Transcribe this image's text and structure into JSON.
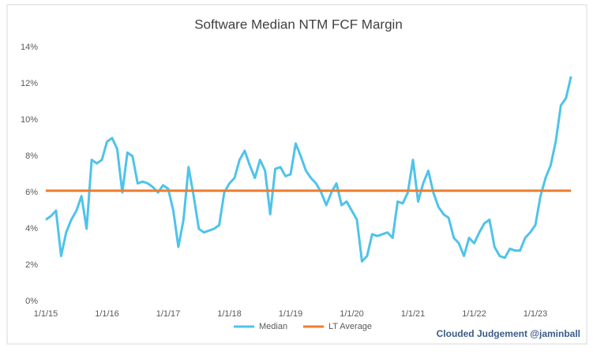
{
  "chart_data": {
    "type": "line",
    "title": "Software Median NTM FCF Margin",
    "categories": [
      "1/1/15",
      null,
      null,
      null,
      null,
      null,
      null,
      null,
      null,
      null,
      null,
      null,
      "1/1/16",
      null,
      null,
      null,
      null,
      null,
      null,
      null,
      null,
      null,
      null,
      null,
      "1/1/17",
      null,
      null,
      null,
      null,
      null,
      null,
      null,
      null,
      null,
      null,
      null,
      "1/1/18",
      null,
      null,
      null,
      null,
      null,
      null,
      null,
      null,
      null,
      null,
      null,
      "1/1/19",
      null,
      null,
      null,
      null,
      null,
      null,
      null,
      null,
      null,
      null,
      null,
      "1/1/20",
      null,
      null,
      null,
      null,
      null,
      null,
      null,
      null,
      null,
      null,
      null,
      "1/1/21",
      null,
      null,
      null,
      null,
      null,
      null,
      null,
      null,
      null,
      null,
      null,
      "1/1/22",
      null,
      null,
      null,
      null,
      null,
      null,
      null,
      null,
      null,
      null,
      null,
      "1/1/23",
      null,
      null,
      null,
      null,
      null,
      null,
      null
    ],
    "series": [
      {
        "name": "Median",
        "color": "#4fc3ea",
        "values": [
          4.5,
          4.7,
          5.0,
          2.5,
          3.8,
          4.5,
          5.0,
          5.8,
          4.0,
          7.8,
          7.6,
          7.8,
          8.8,
          9.0,
          8.4,
          6.0,
          8.2,
          8.0,
          6.5,
          6.6,
          6.5,
          6.3,
          6.0,
          6.4,
          6.2,
          5.0,
          3.0,
          4.5,
          7.4,
          5.8,
          4.0,
          3.8,
          3.9,
          4.0,
          4.2,
          6.0,
          6.5,
          6.8,
          7.8,
          8.3,
          7.5,
          6.8,
          7.8,
          7.2,
          4.8,
          7.3,
          7.4,
          6.9,
          7.0,
          8.7,
          8.0,
          7.2,
          6.8,
          6.5,
          6.0,
          5.3,
          6.0,
          6.5,
          5.3,
          5.5,
          5.0,
          4.5,
          2.2,
          2.5,
          3.7,
          3.6,
          3.7,
          3.8,
          3.5,
          5.5,
          5.4,
          6.0,
          7.8,
          5.5,
          6.5,
          7.2,
          6.0,
          5.2,
          4.8,
          4.6,
          3.5,
          3.2,
          2.5,
          3.5,
          3.2,
          3.8,
          4.3,
          4.5,
          3.0,
          2.5,
          2.4,
          2.9,
          2.8,
          2.8,
          3.5,
          3.8,
          4.2,
          5.8,
          6.8,
          7.5,
          8.8,
          10.8,
          11.2,
          12.4
        ]
      },
      {
        "name": "LT Average",
        "color": "#ed7d31",
        "values": [
          6.1,
          6.1,
          6.1,
          6.1,
          6.1,
          6.1,
          6.1,
          6.1,
          6.1,
          6.1,
          6.1,
          6.1,
          6.1,
          6.1,
          6.1,
          6.1,
          6.1,
          6.1,
          6.1,
          6.1,
          6.1,
          6.1,
          6.1,
          6.1,
          6.1,
          6.1,
          6.1,
          6.1,
          6.1,
          6.1,
          6.1,
          6.1,
          6.1,
          6.1,
          6.1,
          6.1,
          6.1,
          6.1,
          6.1,
          6.1,
          6.1,
          6.1,
          6.1,
          6.1,
          6.1,
          6.1,
          6.1,
          6.1,
          6.1,
          6.1,
          6.1,
          6.1,
          6.1,
          6.1,
          6.1,
          6.1,
          6.1,
          6.1,
          6.1,
          6.1,
          6.1,
          6.1,
          6.1,
          6.1,
          6.1,
          6.1,
          6.1,
          6.1,
          6.1,
          6.1,
          6.1,
          6.1,
          6.1,
          6.1,
          6.1,
          6.1,
          6.1,
          6.1,
          6.1,
          6.1,
          6.1,
          6.1,
          6.1,
          6.1,
          6.1,
          6.1,
          6.1,
          6.1,
          6.1,
          6.1,
          6.1,
          6.1,
          6.1,
          6.1,
          6.1,
          6.1,
          6.1,
          6.1,
          6.1,
          6.1,
          6.1,
          6.1,
          6.1,
          6.1
        ]
      }
    ],
    "ylim": [
      0,
      14
    ],
    "yticks": [
      {
        "value": 0,
        "label": "0%"
      },
      {
        "value": 2,
        "label": "2%"
      },
      {
        "value": 4,
        "label": "4%"
      },
      {
        "value": 6,
        "label": "6%"
      },
      {
        "value": 8,
        "label": "8%"
      },
      {
        "value": 10,
        "label": "10%"
      },
      {
        "value": 12,
        "label": "12%"
      },
      {
        "value": 14,
        "label": "14%"
      }
    ],
    "grid": false,
    "legend": "bottom",
    "annotation": "Clouded Judgement @jaminball"
  }
}
